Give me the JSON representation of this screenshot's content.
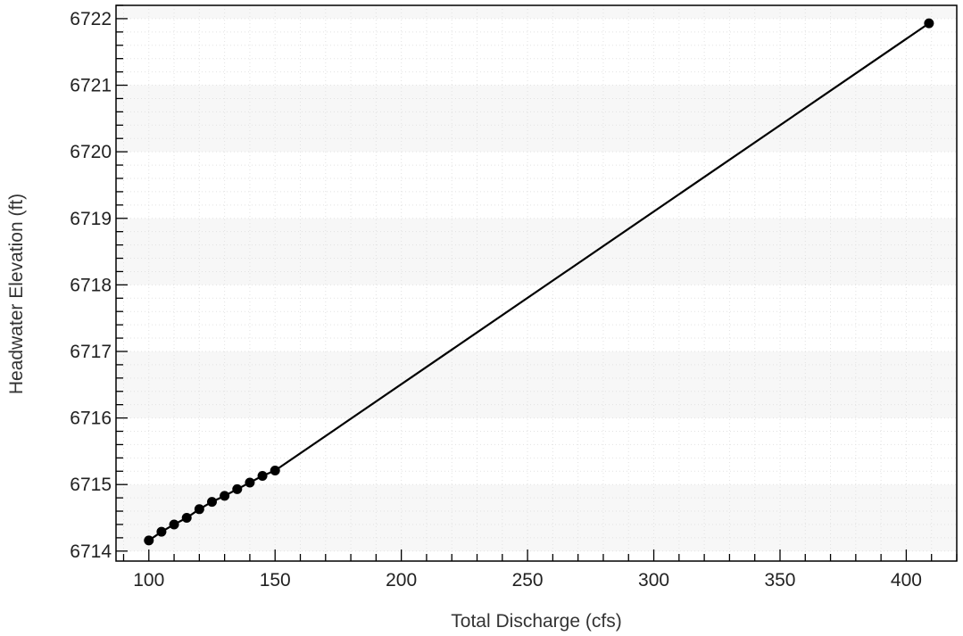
{
  "chart_data": {
    "type": "line",
    "xlabel": "Total Discharge (cfs)",
    "ylabel": "Headwater Elevation (ft)",
    "xlim": [
      87,
      420
    ],
    "ylim": [
      6713.85,
      6722.2
    ],
    "x_ticks": [
      100,
      150,
      200,
      250,
      300,
      350,
      400
    ],
    "y_ticks": [
      6714,
      6715,
      6716,
      6717,
      6718,
      6719,
      6720,
      6721,
      6722
    ],
    "grid": true,
    "legend": "none",
    "series": [
      {
        "x": [
          100,
          105,
          110,
          115,
          120,
          125,
          130,
          135,
          140,
          145,
          150,
          409
        ],
        "y": [
          6714.16,
          6714.29,
          6714.4,
          6714.5,
          6714.63,
          6714.74,
          6714.83,
          6714.93,
          6715.03,
          6715.13,
          6715.21,
          6721.93
        ]
      }
    ],
    "colors": {
      "line": "#000000",
      "marker": "#000000",
      "band_light": "#ffffff",
      "band_dark": "#f7f7f7",
      "frame": "#000000"
    }
  }
}
